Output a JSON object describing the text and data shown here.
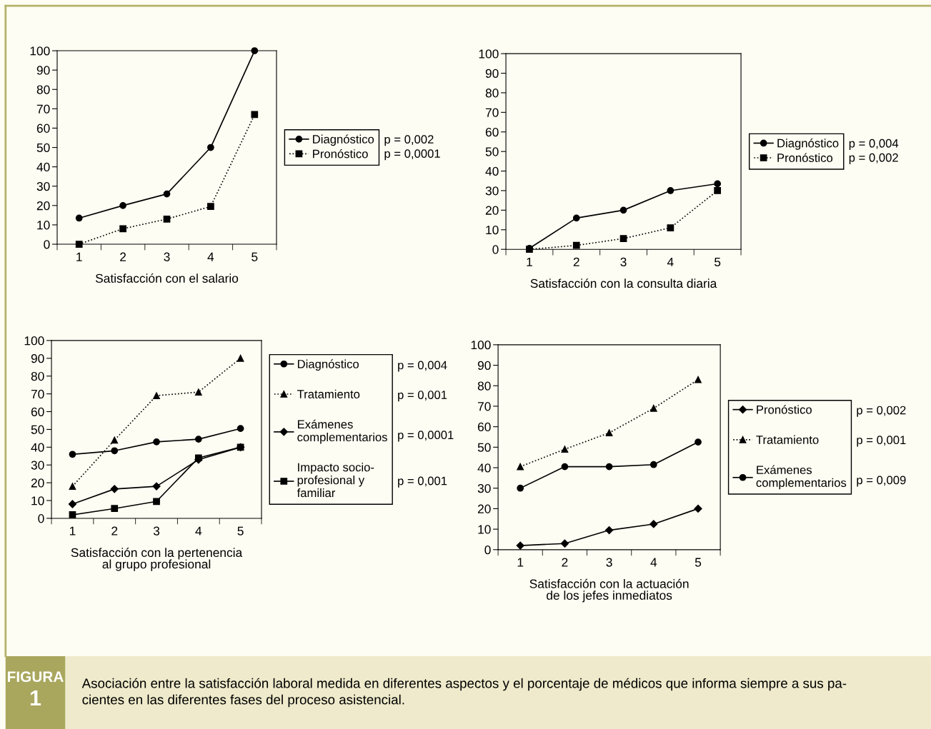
{
  "chart_data": [
    {
      "type": "line",
      "xlabel": "Satisfacción con el salario",
      "categories": [
        "1",
        "2",
        "3",
        "4",
        "5"
      ],
      "ylim": [
        0,
        100
      ],
      "yticks": [
        0,
        10,
        20,
        30,
        40,
        50,
        60,
        70,
        80,
        90,
        100
      ],
      "legend": "right",
      "grid": false,
      "series": [
        {
          "name": "Diagnóstico",
          "color": "#000000",
          "marker": "circle",
          "line_style": "solid",
          "values": [
            13.5,
            20,
            26,
            50,
            100
          ]
        },
        {
          "name": "Pronóstico",
          "color": "#000000",
          "marker": "square",
          "line_style": "dotted",
          "values": [
            0,
            8,
            13,
            19.5,
            67
          ]
        }
      ],
      "annotations": [
        "p = 0,002",
        "p = 0,0001"
      ]
    },
    {
      "type": "line",
      "xlabel": "Satisfacción con la consulta diaria",
      "categories": [
        "1",
        "2",
        "3",
        "4",
        "5"
      ],
      "ylim": [
        0,
        100
      ],
      "yticks": [
        0,
        10,
        20,
        30,
        40,
        50,
        60,
        70,
        80,
        90,
        100
      ],
      "legend": "right",
      "grid": false,
      "series": [
        {
          "name": "Diagnóstico",
          "color": "#000000",
          "marker": "circle",
          "line_style": "solid",
          "values": [
            0.5,
            16,
            20,
            30,
            33.5
          ]
        },
        {
          "name": "Pronóstico",
          "color": "#000000",
          "marker": "square",
          "line_style": "dotted",
          "values": [
            0,
            2,
            5.5,
            11,
            30
          ]
        }
      ],
      "annotations": [
        "p = 0,004",
        "p = 0,002"
      ]
    },
    {
      "type": "line",
      "xlabel": "Satisfacción con la pertenencia\nal grupo profesional",
      "categories": [
        "1",
        "2",
        "3",
        "4",
        "5"
      ],
      "ylim": [
        0,
        100
      ],
      "yticks": [
        0,
        10,
        20,
        30,
        40,
        50,
        60,
        70,
        80,
        90,
        100
      ],
      "legend": "right",
      "grid": false,
      "series": [
        {
          "name": "Diagnóstico",
          "color": "#000000",
          "marker": "circle",
          "line_style": "solid",
          "values": [
            36,
            38,
            43,
            44.5,
            50.5
          ]
        },
        {
          "name": "Tratamiento",
          "color": "#000000",
          "marker": "triangle",
          "line_style": "dotted",
          "values": [
            18,
            44,
            69,
            71,
            90
          ]
        },
        {
          "name": "Exámenes\ncomplementarios",
          "color": "#000000",
          "marker": "diamond",
          "line_style": "solid",
          "values": [
            8,
            16.5,
            18,
            33,
            40
          ]
        },
        {
          "name": "Impacto socio-\nprofesional y\nfamiliar",
          "color": "#000000",
          "marker": "square",
          "line_style": "solid",
          "values": [
            2,
            5.5,
            9.5,
            34,
            40
          ]
        }
      ],
      "annotations": [
        "p = 0,004",
        "p = 0,001",
        "p = 0,0001",
        "p = 0,001"
      ]
    },
    {
      "type": "line",
      "xlabel": "Satisfacción con la actuación\nde los jefes inmediatos",
      "categories": [
        "1",
        "2",
        "3",
        "4",
        "5"
      ],
      "ylim": [
        0,
        100
      ],
      "yticks": [
        0,
        10,
        20,
        30,
        40,
        50,
        60,
        70,
        80,
        90,
        100
      ],
      "legend": "right",
      "grid": false,
      "series": [
        {
          "name": "Pronóstico",
          "color": "#000000",
          "marker": "diamond",
          "line_style": "solid",
          "values": [
            2,
            3,
            9.5,
            12.5,
            20
          ]
        },
        {
          "name": "Tratamiento",
          "color": "#000000",
          "marker": "triangle",
          "line_style": "dotted",
          "values": [
            40.5,
            49,
            57,
            69,
            83
          ]
        },
        {
          "name": "Exámenes\ncomplementarios",
          "color": "#000000",
          "marker": "circle",
          "line_style": "solid",
          "values": [
            30,
            40.5,
            40.5,
            41.5,
            52.5
          ]
        }
      ],
      "annotations": [
        "p = 0,002",
        "p = 0,001",
        "p = 0,009"
      ]
    },
    {
      "type": "other",
      "annotations": [
        "FIGURA",
        "1",
        "Asociación entre la satisfacción laboral medida en diferentes aspectos y el porcentaje de médicos que informa siempre a sus pa-\ncientes en las diferentes fases del proceso asistencial."
      ]
    }
  ]
}
